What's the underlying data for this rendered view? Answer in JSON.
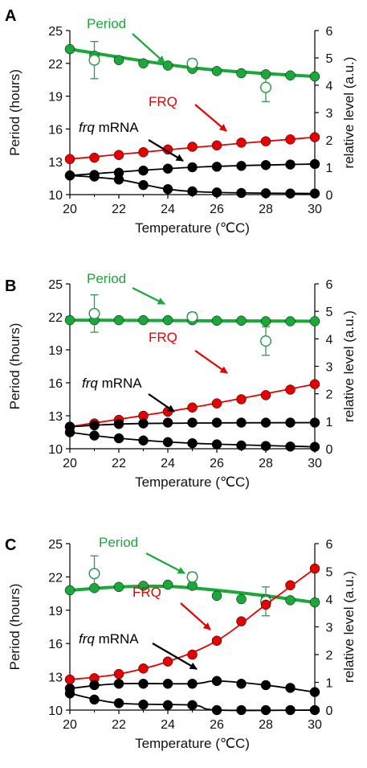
{
  "colors": {
    "period": "#1aa83a",
    "frq": "#e60000",
    "mrna": "#000000",
    "open": "#2e9a4a"
  },
  "chart_data": [
    {
      "type": "scatter",
      "panel": "A",
      "xlabel": "Temperature (℃C)",
      "ylabel": "Period (hours)",
      "y2label": "relative level (a.u.)",
      "xlim": [
        20,
        30
      ],
      "ylim": [
        10,
        25
      ],
      "y2lim": [
        0,
        6
      ],
      "xticks": [
        "20",
        "22",
        "24",
        "26",
        "28",
        "30"
      ],
      "yticks": [
        "10",
        "13",
        "16",
        "19",
        "22",
        "25"
      ],
      "y2ticks": [
        "0",
        "1",
        "2",
        "3",
        "4",
        "5",
        "6"
      ],
      "annotations": {
        "period": "Period",
        "frq": "FRQ",
        "mrna_italic": "frq",
        "mrna_rest": " mRNA"
      },
      "series": [
        {
          "key": "period",
          "axis": "left",
          "points": [
            [
              20,
              23.3
            ],
            [
              21,
              22.7
            ],
            [
              22,
              22.3
            ],
            [
              23,
              22.0
            ],
            [
              24,
              21.8
            ],
            [
              25,
              21.5
            ],
            [
              26,
              21.3
            ],
            [
              27,
              21.1
            ],
            [
              28,
              21.0
            ],
            [
              29,
              20.9
            ],
            [
              30,
              20.8
            ]
          ],
          "fit": [
            [
              20,
              23.3
            ],
            [
              25,
              21.6
            ],
            [
              30,
              20.8
            ]
          ]
        },
        {
          "key": "period_exp",
          "axis": "left",
          "points": [
            [
              21,
              22.3
            ],
            [
              25,
              22.0
            ],
            [
              28,
              19.8
            ]
          ],
          "err": [
            1.7,
            0.4,
            1.3
          ]
        },
        {
          "key": "frq",
          "axis": "right",
          "points": [
            [
              20,
              1.3
            ],
            [
              21,
              1.35
            ],
            [
              22,
              1.45
            ],
            [
              23,
              1.55
            ],
            [
              24,
              1.65
            ],
            [
              25,
              1.75
            ],
            [
              26,
              1.8
            ],
            [
              27,
              1.9
            ],
            [
              28,
              1.95
            ],
            [
              29,
              2.02
            ],
            [
              30,
              2.1
            ]
          ],
          "fit": [
            [
              20,
              1.3
            ],
            [
              25,
              1.72
            ],
            [
              30,
              2.1
            ]
          ]
        },
        {
          "key": "mrna_top",
          "axis": "right",
          "points": [
            [
              20,
              0.7
            ],
            [
              21,
              0.72
            ],
            [
              22,
              0.8
            ],
            [
              23,
              0.88
            ],
            [
              24,
              0.95
            ],
            [
              25,
              1.0
            ],
            [
              26,
              1.02
            ],
            [
              27,
              1.05
            ],
            [
              28,
              1.08
            ],
            [
              29,
              1.1
            ],
            [
              30,
              1.12
            ]
          ],
          "fit": [
            [
              20,
              0.7
            ],
            [
              25,
              1.0
            ],
            [
              30,
              1.12
            ]
          ]
        },
        {
          "key": "mrna_bottom",
          "axis": "right",
          "points": [
            [
              20,
              0.7
            ],
            [
              21,
              0.66
            ],
            [
              22,
              0.55
            ],
            [
              23,
              0.35
            ],
            [
              24,
              0.2
            ],
            [
              25,
              0.12
            ],
            [
              26,
              0.08
            ],
            [
              27,
              0.06
            ],
            [
              28,
              0.05
            ],
            [
              29,
              0.04
            ],
            [
              30,
              0.04
            ]
          ],
          "fit": [
            [
              20,
              0.7
            ],
            [
              22,
              0.55
            ],
            [
              24,
              0.2
            ],
            [
              26,
              0.08
            ],
            [
              30,
              0.04
            ]
          ]
        }
      ]
    },
    {
      "type": "scatter",
      "panel": "B",
      "xlabel": "Temperature (℃C)",
      "ylabel": "Period (hours)",
      "y2label": "relative level (a.u.)",
      "xlim": [
        20,
        30
      ],
      "ylim": [
        10,
        25
      ],
      "y2lim": [
        0,
        6
      ],
      "xticks": [
        "20",
        "22",
        "24",
        "26",
        "28",
        "30"
      ],
      "yticks": [
        "10",
        "13",
        "16",
        "19",
        "22",
        "25"
      ],
      "y2ticks": [
        "0",
        "1",
        "2",
        "3",
        "4",
        "5",
        "6"
      ],
      "annotations": {
        "period": "Period",
        "frq": "FRQ",
        "mrna_italic": "frq",
        "mrna_rest": " mRNA"
      },
      "series": [
        {
          "key": "period",
          "axis": "left",
          "points": [
            [
              20,
              21.7
            ],
            [
              21,
              21.7
            ],
            [
              22,
              21.7
            ],
            [
              23,
              21.7
            ],
            [
              24,
              21.7
            ],
            [
              25,
              21.7
            ],
            [
              26,
              21.65
            ],
            [
              27,
              21.65
            ],
            [
              28,
              21.6
            ],
            [
              29,
              21.6
            ],
            [
              30,
              21.6
            ]
          ],
          "fit": [
            [
              20,
              21.7
            ],
            [
              30,
              21.6
            ]
          ]
        },
        {
          "key": "period_exp",
          "axis": "left",
          "points": [
            [
              21,
              22.3
            ],
            [
              25,
              22.0
            ],
            [
              28,
              19.8
            ]
          ],
          "err": [
            1.7,
            0.4,
            1.3
          ]
        },
        {
          "key": "frq",
          "axis": "right",
          "points": [
            [
              20,
              0.8
            ],
            [
              21,
              0.92
            ],
            [
              22,
              1.05
            ],
            [
              23,
              1.2
            ],
            [
              24,
              1.35
            ],
            [
              25,
              1.5
            ],
            [
              26,
              1.65
            ],
            [
              27,
              1.8
            ],
            [
              28,
              1.95
            ],
            [
              29,
              2.15
            ],
            [
              30,
              2.35
            ]
          ],
          "fit": [
            [
              20,
              0.8
            ],
            [
              25,
              1.5
            ],
            [
              30,
              2.35
            ]
          ]
        },
        {
          "key": "mrna_top",
          "axis": "right",
          "points": [
            [
              20,
              0.8
            ],
            [
              21,
              0.85
            ],
            [
              22,
              0.9
            ],
            [
              23,
              0.92
            ],
            [
              24,
              0.95
            ],
            [
              25,
              0.95
            ],
            [
              26,
              0.95
            ],
            [
              27,
              0.95
            ],
            [
              28,
              0.95
            ],
            [
              29,
              0.95
            ],
            [
              30,
              0.95
            ]
          ],
          "fit": [
            [
              20,
              0.8
            ],
            [
              23,
              0.92
            ],
            [
              30,
              0.95
            ]
          ]
        },
        {
          "key": "mrna_bottom",
          "axis": "right",
          "points": [
            [
              20,
              0.6
            ],
            [
              21,
              0.48
            ],
            [
              22,
              0.38
            ],
            [
              23,
              0.3
            ],
            [
              24,
              0.24
            ],
            [
              25,
              0.2
            ],
            [
              26,
              0.16
            ],
            [
              27,
              0.12
            ],
            [
              28,
              0.1
            ],
            [
              29,
              0.08
            ],
            [
              30,
              0.07
            ]
          ],
          "fit": [
            [
              20,
              0.6
            ],
            [
              22,
              0.38
            ],
            [
              25,
              0.2
            ],
            [
              30,
              0.07
            ]
          ]
        }
      ]
    },
    {
      "type": "scatter",
      "panel": "C",
      "xlabel": "Temperature (℃C)",
      "ylabel": "Period (hours)",
      "y2label": "relative level (a.u.)",
      "xlim": [
        20,
        30
      ],
      "ylim": [
        10,
        25
      ],
      "y2lim": [
        0,
        6
      ],
      "xticks": [
        "20",
        "22",
        "24",
        "26",
        "28",
        "30"
      ],
      "yticks": [
        "10",
        "13",
        "16",
        "19",
        "22",
        "25"
      ],
      "y2ticks": [
        "0",
        "1",
        "2",
        "3",
        "4",
        "5",
        "6"
      ],
      "annotations": {
        "period": "Period",
        "frq": "FRQ",
        "mrna_italic": "frq",
        "mrna_rest": " mRNA"
      },
      "series": [
        {
          "key": "period",
          "axis": "left",
          "points": [
            [
              20,
              20.8
            ],
            [
              21,
              21.0
            ],
            [
              22,
              21.1
            ],
            [
              23,
              21.2
            ],
            [
              24,
              21.3
            ],
            [
              25,
              21.2
            ],
            [
              26,
              20.3
            ],
            [
              27,
              20.0
            ],
            [
              28,
              20.0
            ],
            [
              29,
              19.9
            ],
            [
              30,
              19.7
            ]
          ],
          "fit": [
            [
              20,
              20.8
            ],
            [
              22,
              21.1
            ],
            [
              24,
              21.15
            ],
            [
              26,
              20.8
            ],
            [
              28,
              20.3
            ],
            [
              30,
              19.7
            ]
          ]
        },
        {
          "key": "period_exp",
          "axis": "left",
          "points": [
            [
              21,
              22.3
            ],
            [
              25,
              22.0
            ],
            [
              28,
              19.8
            ]
          ],
          "err": [
            1.6,
            0.4,
            1.3
          ]
        },
        {
          "key": "frq",
          "axis": "right",
          "points": [
            [
              20,
              1.1
            ],
            [
              21,
              1.15
            ],
            [
              22,
              1.3
            ],
            [
              23,
              1.5
            ],
            [
              24,
              1.75
            ],
            [
              25,
              2.0
            ],
            [
              26,
              2.5
            ],
            [
              27,
              3.2
            ],
            [
              28,
              3.8
            ],
            [
              29,
              4.5
            ],
            [
              30,
              5.1
            ]
          ],
          "fit": [
            [
              20,
              1.1
            ],
            [
              22,
              1.3
            ],
            [
              24,
              1.75
            ],
            [
              26,
              2.5
            ],
            [
              28,
              3.8
            ],
            [
              30,
              5.1
            ]
          ]
        },
        {
          "key": "mrna_top",
          "axis": "right",
          "points": [
            [
              20,
              0.78
            ],
            [
              21,
              0.9
            ],
            [
              22,
              0.95
            ],
            [
              23,
              0.95
            ],
            [
              24,
              0.95
            ],
            [
              25,
              0.95
            ],
            [
              26,
              1.05
            ],
            [
              27,
              0.95
            ],
            [
              28,
              0.9
            ],
            [
              29,
              0.8
            ],
            [
              30,
              0.65
            ]
          ],
          "fit": [
            [
              20,
              0.78
            ],
            [
              22,
              0.95
            ],
            [
              25,
              0.95
            ],
            [
              26,
              1.05
            ],
            [
              28,
              0.9
            ],
            [
              30,
              0.65
            ]
          ]
        },
        {
          "key": "mrna_bottom",
          "axis": "right",
          "points": [
            [
              20,
              0.6
            ],
            [
              21,
              0.38
            ],
            [
              22,
              0.25
            ],
            [
              23,
              0.2
            ],
            [
              24,
              0.18
            ],
            [
              25,
              0.18
            ],
            [
              26,
              0.0
            ],
            [
              27,
              0.0
            ],
            [
              28,
              0.0
            ],
            [
              29,
              0.0
            ],
            [
              30,
              0.0
            ]
          ],
          "fit": [
            [
              20,
              0.6
            ],
            [
              22,
              0.25
            ],
            [
              25,
              0.18
            ],
            [
              26,
              0.0
            ],
            [
              30,
              0.0
            ]
          ]
        }
      ]
    }
  ]
}
